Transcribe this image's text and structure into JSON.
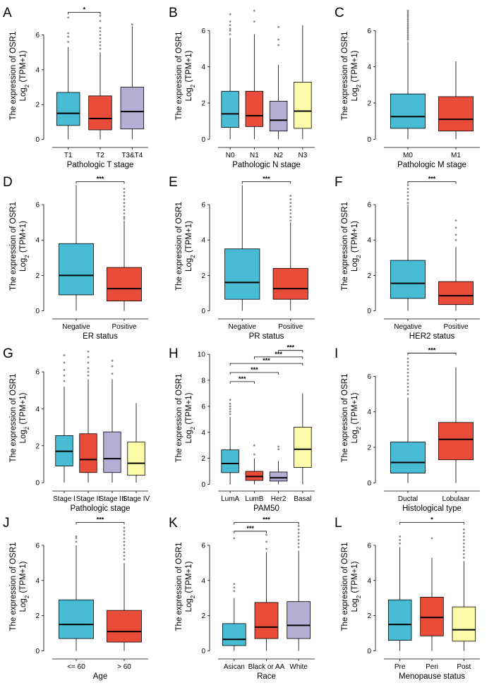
{
  "colors": {
    "blue": "#48bcd4",
    "red": "#e94c39",
    "purple": "#b4aed4",
    "yellow": "#fdfaa8",
    "axis": "#000000",
    "outlier": "#8a8a8a"
  },
  "ylabel_line1": "The expression of OSR1",
  "ylabel_line2_prefix": "Log",
  "ylabel_line2_sub": "2",
  "ylabel_line2_suffix": " (TPM+1)",
  "chart_data": [
    {
      "letter": "A",
      "type": "box",
      "title": "",
      "xlabel": "Pathologic T stage",
      "ylabel": "The expression of OSR1 Log2 (TPM+1)",
      "ylim": [
        -0.3,
        7.6
      ],
      "yticks": [
        0,
        2,
        4,
        6
      ],
      "categories": [
        "T1",
        "T2",
        "T3&T4"
      ],
      "colors": [
        "blue",
        "red",
        "purple"
      ],
      "boxes": [
        {
          "min": 0,
          "q1": 0.8,
          "median": 1.5,
          "q3": 2.7,
          "max": 5.3,
          "outliers": [
            5.6,
            5.9,
            6.1,
            7.0
          ]
        },
        {
          "min": 0,
          "q1": 0.55,
          "median": 1.2,
          "q3": 2.5,
          "max": 5.0,
          "outliers": [
            5.2,
            5.4,
            5.6,
            5.8,
            6.0,
            6.2,
            6.4,
            6.8,
            7.1
          ]
        },
        {
          "min": 0,
          "q1": 0.6,
          "median": 1.6,
          "q3": 3.0,
          "max": 6.5,
          "outliers": [
            6.6
          ]
        }
      ],
      "sig": [
        {
          "from": 0,
          "to": 1,
          "label": "*",
          "y": 7.3
        }
      ]
    },
    {
      "letter": "B",
      "type": "box",
      "title": "",
      "xlabel": "Pathologic N stage",
      "ylabel": "The expression of OSR1 Log2 (TPM+1)",
      "ylim": [
        -0.3,
        7.3
      ],
      "yticks": [
        0,
        2,
        4,
        6
      ],
      "categories": [
        "N0",
        "N1",
        "N2",
        "N3"
      ],
      "colors": [
        "blue",
        "red",
        "purple",
        "yellow"
      ],
      "boxes": [
        {
          "min": 0,
          "q1": 0.65,
          "median": 1.4,
          "q3": 2.65,
          "max": 5.6,
          "outliers": [
            5.8,
            6.0,
            6.1,
            6.3,
            6.5,
            6.9
          ]
        },
        {
          "min": 0,
          "q1": 0.7,
          "median": 1.3,
          "q3": 2.65,
          "max": 5.8,
          "outliers": [
            6.5,
            7.1
          ]
        },
        {
          "min": 0,
          "q1": 0.45,
          "median": 1.05,
          "q3": 2.1,
          "max": 4.1,
          "outliers": [
            5.2,
            5.5,
            6.2
          ]
        },
        {
          "min": 0,
          "q1": 0.6,
          "median": 1.55,
          "q3": 3.15,
          "max": 6.3,
          "outliers": []
        }
      ],
      "sig": []
    },
    {
      "letter": "C",
      "type": "box",
      "title": "",
      "xlabel": "Pathologic M stage",
      "ylabel": "The expression of OSR1 Log2 (TPM+1)",
      "ylim": [
        -0.3,
        7.3
      ],
      "yticks": [
        0,
        2,
        4,
        6
      ],
      "categories": [
        "M0",
        "M1"
      ],
      "colors": [
        "blue",
        "red"
      ],
      "boxes": [
        {
          "min": 0,
          "q1": 0.6,
          "median": 1.25,
          "q3": 2.5,
          "max": 5.4,
          "outliers": [
            5.5,
            5.6,
            5.7,
            5.8,
            5.9,
            6.0,
            6.1,
            6.2,
            6.3,
            6.4,
            6.5,
            6.6,
            6.7,
            6.8,
            6.9,
            7.0,
            7.1
          ]
        },
        {
          "min": 0,
          "q1": 0.45,
          "median": 1.1,
          "q3": 2.35,
          "max": 4.3,
          "outliers": []
        }
      ],
      "sig": []
    },
    {
      "letter": "D",
      "type": "box",
      "title": "",
      "xlabel": "ER status",
      "ylabel": "The expression of OSR1 Log2 (TPM+1)",
      "ylim": [
        -0.3,
        7.6
      ],
      "yticks": [
        0,
        2,
        4,
        6
      ],
      "categories": [
        "Negative",
        "Positive"
      ],
      "colors": [
        "blue",
        "red"
      ],
      "boxes": [
        {
          "min": 0,
          "q1": 0.9,
          "median": 2.0,
          "q3": 3.8,
          "max": 7.1,
          "outliers": []
        },
        {
          "min": 0,
          "q1": 0.55,
          "median": 1.25,
          "q3": 2.45,
          "max": 5.1,
          "outliers": [
            5.2,
            5.3,
            5.5,
            5.7,
            5.9,
            6.1,
            6.3,
            6.5,
            6.7,
            6.9
          ]
        }
      ],
      "sig": [
        {
          "from": 0,
          "to": 1,
          "label": "***",
          "y": 7.3
        }
      ]
    },
    {
      "letter": "E",
      "type": "box",
      "title": "",
      "xlabel": "PR status",
      "ylabel": "The expression of OSR1 Log2 (TPM+1)",
      "ylim": [
        -0.3,
        7.6
      ],
      "yticks": [
        0,
        2,
        4,
        6
      ],
      "categories": [
        "Negative",
        "Positive"
      ],
      "colors": [
        "blue",
        "red"
      ],
      "boxes": [
        {
          "min": 0,
          "q1": 0.65,
          "median": 1.6,
          "q3": 3.5,
          "max": 7.1,
          "outliers": []
        },
        {
          "min": 0,
          "q1": 0.65,
          "median": 1.25,
          "q3": 2.4,
          "max": 5.0,
          "outliers": [
            5.1,
            5.3,
            5.5,
            5.7,
            5.9,
            6.1,
            6.3,
            6.5
          ]
        }
      ],
      "sig": [
        {
          "from": 0,
          "to": 1,
          "label": "***",
          "y": 7.3
        }
      ]
    },
    {
      "letter": "F",
      "type": "box",
      "title": "",
      "xlabel": "HER2 status",
      "ylabel": "The expression of OSR1 Log2 (TPM+1)",
      "ylim": [
        -0.3,
        7.6
      ],
      "yticks": [
        0,
        2,
        4,
        6
      ],
      "categories": [
        "Negative",
        "Positive"
      ],
      "colors": [
        "blue",
        "red"
      ],
      "boxes": [
        {
          "min": 0,
          "q1": 0.7,
          "median": 1.55,
          "q3": 2.85,
          "max": 6.0,
          "outliers": [
            6.1,
            6.3,
            6.5,
            6.7,
            6.9,
            7.1
          ]
        },
        {
          "min": 0,
          "q1": 0.35,
          "median": 0.85,
          "q3": 1.65,
          "max": 3.6,
          "outliers": [
            4.0,
            4.3,
            4.7,
            5.1
          ]
        }
      ],
      "sig": [
        {
          "from": 0,
          "to": 1,
          "label": "***",
          "y": 7.3
        }
      ]
    },
    {
      "letter": "G",
      "type": "box",
      "title": "",
      "xlabel": "Pathologic stage",
      "ylabel": "The expression of OSR1 Log2 (TPM+1)",
      "ylim": [
        -0.3,
        7.3
      ],
      "yticks": [
        0,
        2,
        4,
        6
      ],
      "categories": [
        "Stage I",
        "Stage II",
        "Stage III",
        "Stage IV"
      ],
      "colors": [
        "blue",
        "red",
        "purple",
        "yellow"
      ],
      "boxes": [
        {
          "min": 0,
          "q1": 0.9,
          "median": 1.7,
          "q3": 2.55,
          "max": 5.2,
          "outliers": [
            5.5,
            5.8,
            6.1,
            6.5,
            6.9
          ]
        },
        {
          "min": 0,
          "q1": 0.55,
          "median": 1.25,
          "q3": 2.65,
          "max": 5.6,
          "outliers": [
            5.8,
            6.0,
            6.2,
            6.5,
            6.8,
            7.1
          ]
        },
        {
          "min": 0,
          "q1": 0.55,
          "median": 1.3,
          "q3": 2.75,
          "max": 5.6,
          "outliers": [
            5.9,
            6.3,
            6.6
          ]
        },
        {
          "min": 0,
          "q1": 0.4,
          "median": 1.05,
          "q3": 2.2,
          "max": 4.3,
          "outliers": []
        }
      ],
      "sig": []
    },
    {
      "letter": "H",
      "type": "box",
      "title": "",
      "xlabel": "PAM50",
      "ylabel": "The expression of OSR1 Log2 (TPM+1)",
      "ylim": [
        -0.3,
        10.5
      ],
      "yticks": [
        0,
        2,
        4,
        6,
        8,
        10
      ],
      "categories": [
        "LumA",
        "LumB",
        "Her2",
        "Basal"
      ],
      "colors": [
        "blue",
        "red",
        "purple",
        "yellow"
      ],
      "boxes": [
        {
          "min": 0,
          "q1": 0.9,
          "median": 1.6,
          "q3": 2.65,
          "max": 5.2,
          "outliers": [
            5.4,
            5.6,
            5.8,
            6.0,
            6.2,
            6.5
          ]
        },
        {
          "min": 0,
          "q1": 0.3,
          "median": 0.6,
          "q3": 1.0,
          "max": 2.0,
          "outliers": [
            2.3,
            3.0
          ]
        },
        {
          "min": 0,
          "q1": 0.25,
          "median": 0.5,
          "q3": 0.95,
          "max": 1.8,
          "outliers": [
            2.7,
            2.9
          ]
        },
        {
          "min": 0,
          "q1": 1.3,
          "median": 2.7,
          "q3": 4.4,
          "max": 7.0,
          "outliers": []
        }
      ],
      "sig": [
        {
          "from": 0,
          "to": 1,
          "label": "***",
          "y": 7.9
        },
        {
          "from": 0,
          "to": 2,
          "label": "***",
          "y": 8.6
        },
        {
          "from": 0,
          "to": 3,
          "label": "***",
          "y": 9.3
        },
        {
          "from": 1,
          "to": 3,
          "label": "***",
          "y": 9.8
        },
        {
          "from": 2,
          "to": 3,
          "label": "***",
          "y": 10.3
        }
      ]
    },
    {
      "letter": "I",
      "type": "box",
      "title": "",
      "xlabel": "Histological type",
      "ylabel": "The expression of OSR1 Log2 (TPM+1)",
      "ylim": [
        -0.3,
        7.6
      ],
      "yticks": [
        0,
        2,
        4,
        6
      ],
      "categories": [
        "Ductal",
        "Lobulaar"
      ],
      "colors": [
        "blue",
        "red"
      ],
      "boxes": [
        {
          "min": 0,
          "q1": 0.55,
          "median": 1.15,
          "q3": 2.3,
          "max": 4.8,
          "outliers": [
            5.0,
            5.2,
            5.4,
            5.6,
            5.8,
            6.0,
            6.2,
            6.4,
            6.6,
            6.8,
            7.0
          ]
        },
        {
          "min": 0,
          "q1": 1.3,
          "median": 2.45,
          "q3": 3.4,
          "max": 6.5,
          "outliers": []
        }
      ],
      "sig": [
        {
          "from": 0,
          "to": 1,
          "label": "***",
          "y": 7.3
        }
      ]
    },
    {
      "letter": "J",
      "type": "box",
      "title": "",
      "xlabel": "Age",
      "ylabel": "The expression of OSR1 Log2 (TPM+1)",
      "ylim": [
        -0.3,
        7.6
      ],
      "yticks": [
        0,
        2,
        4,
        6
      ],
      "categories": [
        "<= 60",
        "> 60"
      ],
      "colors": [
        "blue",
        "red"
      ],
      "boxes": [
        {
          "min": 0,
          "q1": 0.7,
          "median": 1.5,
          "q3": 2.9,
          "max": 6.0,
          "outliers": [
            6.2,
            6.4,
            6.5
          ]
        },
        {
          "min": 0,
          "q1": 0.5,
          "median": 1.1,
          "q3": 2.3,
          "max": 5.0,
          "outliers": [
            5.2,
            5.4,
            5.6,
            5.8,
            6.0,
            6.2,
            6.4,
            6.6,
            6.8,
            7.0
          ]
        }
      ],
      "sig": [
        {
          "from": 0,
          "to": 1,
          "label": "***",
          "y": 7.3
        }
      ]
    },
    {
      "letter": "K",
      "type": "box",
      "title": "",
      "xlabel": "Race",
      "ylabel": "The expression of OSR1 Log2 (TPM+1)",
      "ylim": [
        -0.3,
        7.6
      ],
      "yticks": [
        0,
        2,
        4,
        6
      ],
      "categories": [
        "Asican",
        "Black or AA",
        "White"
      ],
      "colors": [
        "blue",
        "red",
        "purple"
      ],
      "boxes": [
        {
          "min": 0,
          "q1": 0.3,
          "median": 0.65,
          "q3": 1.55,
          "max": 3.0,
          "outliers": [
            3.4,
            3.6,
            3.8,
            6.4
          ]
        },
        {
          "min": 0,
          "q1": 0.7,
          "median": 1.35,
          "q3": 2.75,
          "max": 5.6,
          "outliers": [
            5.8,
            6.2,
            6.6
          ]
        },
        {
          "min": 0,
          "q1": 0.7,
          "median": 1.45,
          "q3": 2.8,
          "max": 5.7,
          "outliers": [
            5.9,
            6.1,
            6.3,
            6.5,
            6.7,
            6.9,
            7.1
          ]
        }
      ],
      "sig": [
        {
          "from": 0,
          "to": 1,
          "label": "***",
          "y": 6.8
        },
        {
          "from": 0,
          "to": 2,
          "label": "***",
          "y": 7.3
        }
      ]
    },
    {
      "letter": "L",
      "type": "box",
      "title": "",
      "xlabel": "Menopause status",
      "ylabel": "The expression of OSR1 Log2 (TPM+1)",
      "ylim": [
        -0.3,
        7.6
      ],
      "yticks": [
        0,
        2,
        4,
        6
      ],
      "categories": [
        "Pre",
        "Peri",
        "Post"
      ],
      "colors": [
        "blue",
        "red",
        "yellow"
      ],
      "boxes": [
        {
          "min": 0,
          "q1": 0.6,
          "median": 1.5,
          "q3": 2.9,
          "max": 5.9,
          "outliers": [
            6.1,
            6.3,
            6.5
          ]
        },
        {
          "min": 0,
          "q1": 0.85,
          "median": 1.9,
          "q3": 3.05,
          "max": 5.3,
          "outliers": [
            6.4
          ]
        },
        {
          "min": 0,
          "q1": 0.55,
          "median": 1.2,
          "q3": 2.5,
          "max": 5.1,
          "outliers": [
            5.3,
            5.5,
            5.7,
            5.9,
            6.1,
            6.3,
            6.5,
            6.7,
            6.9
          ]
        }
      ],
      "sig": [
        {
          "from": 0,
          "to": 2,
          "label": "*",
          "y": 7.3
        }
      ]
    }
  ]
}
